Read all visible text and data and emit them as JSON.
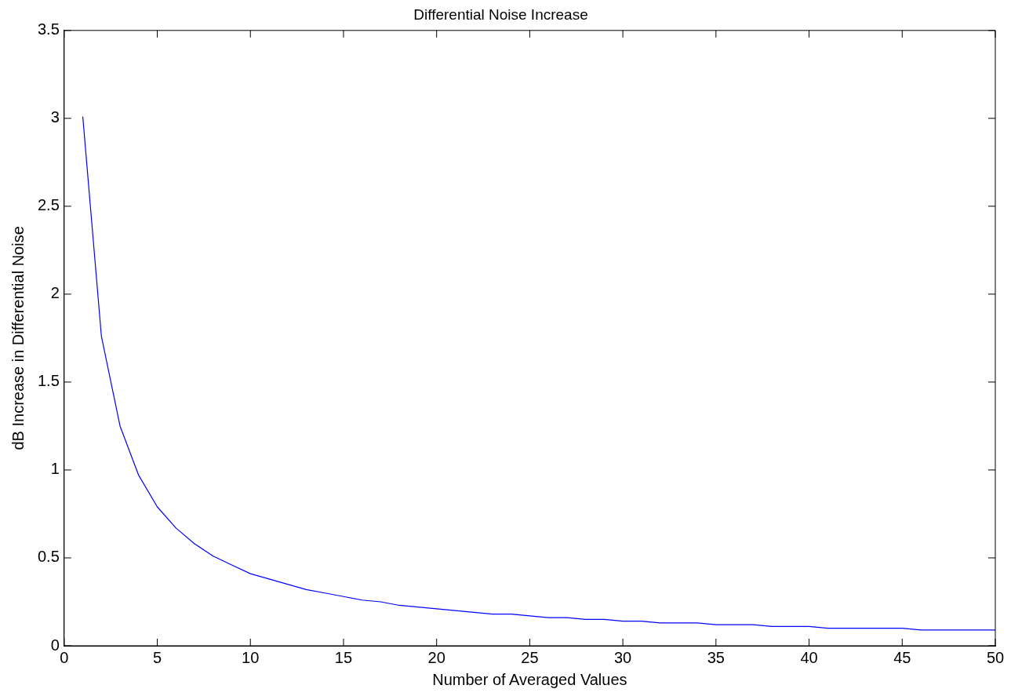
{
  "chart_data": {
    "type": "line",
    "title": "Differential Noise Increase",
    "xlabel": "Number of Averaged Values",
    "ylabel": "dB Increase in Differential Noise",
    "x": [
      1,
      2,
      3,
      4,
      5,
      6,
      7,
      8,
      9,
      10,
      11,
      12,
      13,
      14,
      15,
      16,
      17,
      18,
      19,
      20,
      21,
      22,
      23,
      24,
      25,
      26,
      27,
      28,
      29,
      30,
      31,
      32,
      33,
      34,
      35,
      36,
      37,
      38,
      39,
      40,
      41,
      42,
      43,
      44,
      45,
      46,
      47,
      48,
      49,
      50
    ],
    "series": [
      {
        "color": "#0000ff",
        "values": [
          3.01,
          1.76,
          1.25,
          0.97,
          0.79,
          0.67,
          0.58,
          0.51,
          0.46,
          0.41,
          0.38,
          0.35,
          0.32,
          0.3,
          0.28,
          0.26,
          0.25,
          0.23,
          0.22,
          0.21,
          0.2,
          0.19,
          0.18,
          0.18,
          0.17,
          0.16,
          0.16,
          0.15,
          0.15,
          0.14,
          0.14,
          0.13,
          0.13,
          0.13,
          0.12,
          0.12,
          0.12,
          0.11,
          0.11,
          0.11,
          0.1,
          0.1,
          0.1,
          0.1,
          0.1,
          0.09,
          0.09,
          0.09,
          0.09,
          0.09
        ]
      }
    ],
    "xlim": [
      0,
      50
    ],
    "xticks": [
      0,
      5,
      10,
      15,
      20,
      25,
      30,
      35,
      40,
      45,
      50
    ],
    "ylim": [
      0,
      3.5
    ],
    "yticks": [
      0,
      0.5,
      1,
      1.5,
      2,
      2.5,
      3,
      3.5
    ],
    "marker": "none",
    "line_style": "solid",
    "grid": false,
    "legend": false
  }
}
